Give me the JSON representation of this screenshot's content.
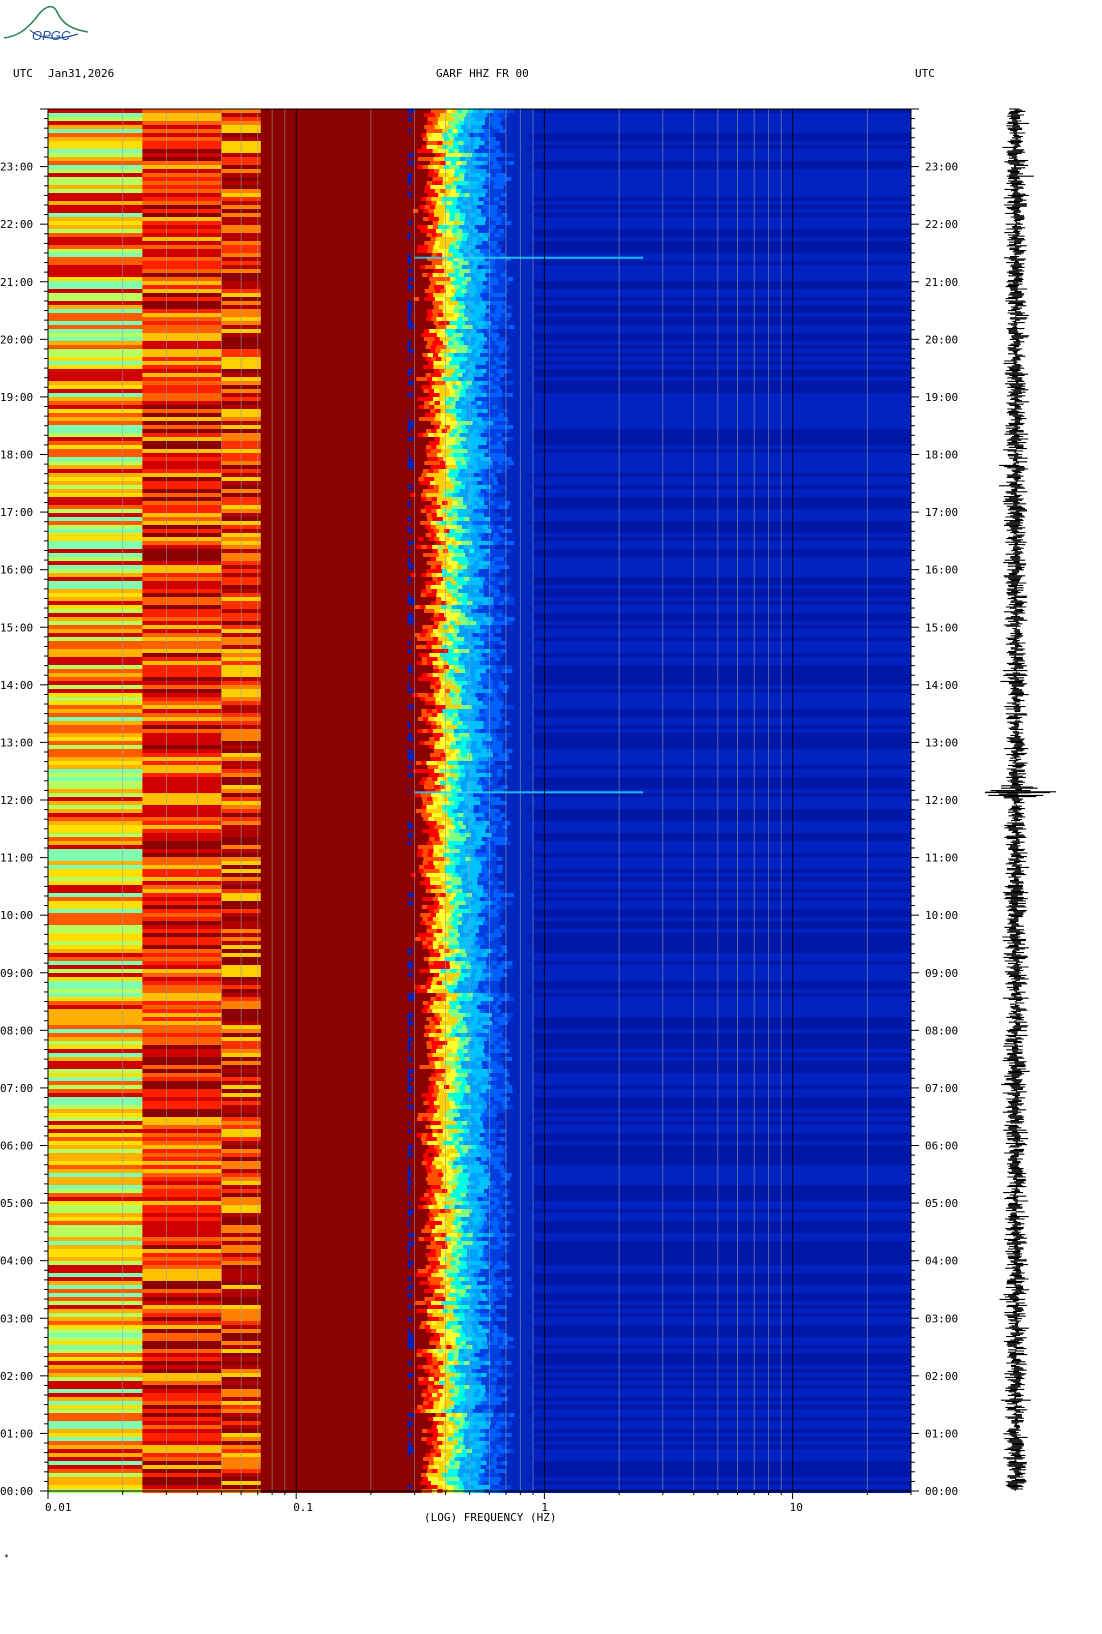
{
  "header": {
    "left_tz": "UTC",
    "date": "Jan31,2026",
    "station": "GARF HHZ FR 00",
    "right_tz": "UTC"
  },
  "logo": {
    "text": "OPGC"
  },
  "footer_mark": "*",
  "chart_data": {
    "type": "heatmap",
    "title": "GARF HHZ FR 00",
    "xlabel": "(LOG) FREQUENCY (HZ)",
    "ylabel": "",
    "x_scale": "log",
    "xlim": [
      0.01,
      30
    ],
    "x_ticks": [
      {
        "value": 0.01,
        "label": "0.01"
      },
      {
        "value": 0.1,
        "label": "0.1"
      },
      {
        "value": 1,
        "label": "1"
      },
      {
        "value": 10,
        "label": "10"
      }
    ],
    "y_unit": "hours UTC",
    "ylim": [
      0,
      24
    ],
    "y_ticks": [
      {
        "value": 0,
        "label": "00:00"
      },
      {
        "value": 1,
        "label": "01:00"
      },
      {
        "value": 2,
        "label": "02:00"
      },
      {
        "value": 3,
        "label": "03:00"
      },
      {
        "value": 4,
        "label": "04:00"
      },
      {
        "value": 5,
        "label": "05:00"
      },
      {
        "value": 6,
        "label": "06:00"
      },
      {
        "value": 7,
        "label": "07:00"
      },
      {
        "value": 8,
        "label": "08:00"
      },
      {
        "value": 9,
        "label": "09:00"
      },
      {
        "value": 10,
        "label": "10:00"
      },
      {
        "value": 11,
        "label": "11:00"
      },
      {
        "value": 12,
        "label": "12:00"
      },
      {
        "value": 13,
        "label": "13:00"
      },
      {
        "value": 14,
        "label": "14:00"
      },
      {
        "value": 15,
        "label": "15:00"
      },
      {
        "value": 16,
        "label": "16:00"
      },
      {
        "value": 17,
        "label": "17:00"
      },
      {
        "value": 18,
        "label": "18:00"
      },
      {
        "value": 19,
        "label": "19:00"
      },
      {
        "value": 20,
        "label": "20:00"
      },
      {
        "value": 21,
        "label": "21:00"
      },
      {
        "value": 22,
        "label": "22:00"
      },
      {
        "value": 23,
        "label": "23:00"
      }
    ],
    "frequency_bands": [
      {
        "from": 0.01,
        "to": 0.024,
        "level": "high-variable",
        "colors": [
          "#ffe000",
          "#ffb000",
          "#ff5a00",
          "#d00000",
          "#b8ff60",
          "#80ffb0"
        ]
      },
      {
        "from": 0.024,
        "to": 0.05,
        "level": "high",
        "colors": [
          "#ff2000",
          "#ff6000",
          "#d00000",
          "#ffc000",
          "#8b0000"
        ]
      },
      {
        "from": 0.05,
        "to": 0.072,
        "level": "very-high",
        "colors": [
          "#b00000",
          "#ff3000",
          "#8b0000",
          "#ff8000",
          "#ffd000"
        ]
      },
      {
        "from": 0.072,
        "to": 0.28,
        "level": "saturated",
        "colors": [
          "#8b0000"
        ]
      },
      {
        "from": 0.28,
        "to": 0.9,
        "level": "falling",
        "colors": [
          "#ff0000",
          "#ffe000",
          "#00e0ff",
          "#0060ff"
        ]
      },
      {
        "from": 0.9,
        "to": 30,
        "level": "low",
        "colors": [
          "#0022c0",
          "#0018a8"
        ]
      }
    ],
    "events": [
      {
        "time": "12:08",
        "label": "broadband transient near 0.9 Hz"
      },
      {
        "time": "21:25",
        "label": "narrow line near 0.9 Hz"
      }
    ],
    "colorscale": [
      "#00008b",
      "#0000ff",
      "#00bfff",
      "#00ffff",
      "#7fff7f",
      "#ffff00",
      "#ff8000",
      "#ff0000",
      "#8b0000"
    ],
    "trace": {
      "description": "24-hour seismogram (vertical component) drawn alongside the spectrogram",
      "main_event_time": "12:08"
    }
  }
}
